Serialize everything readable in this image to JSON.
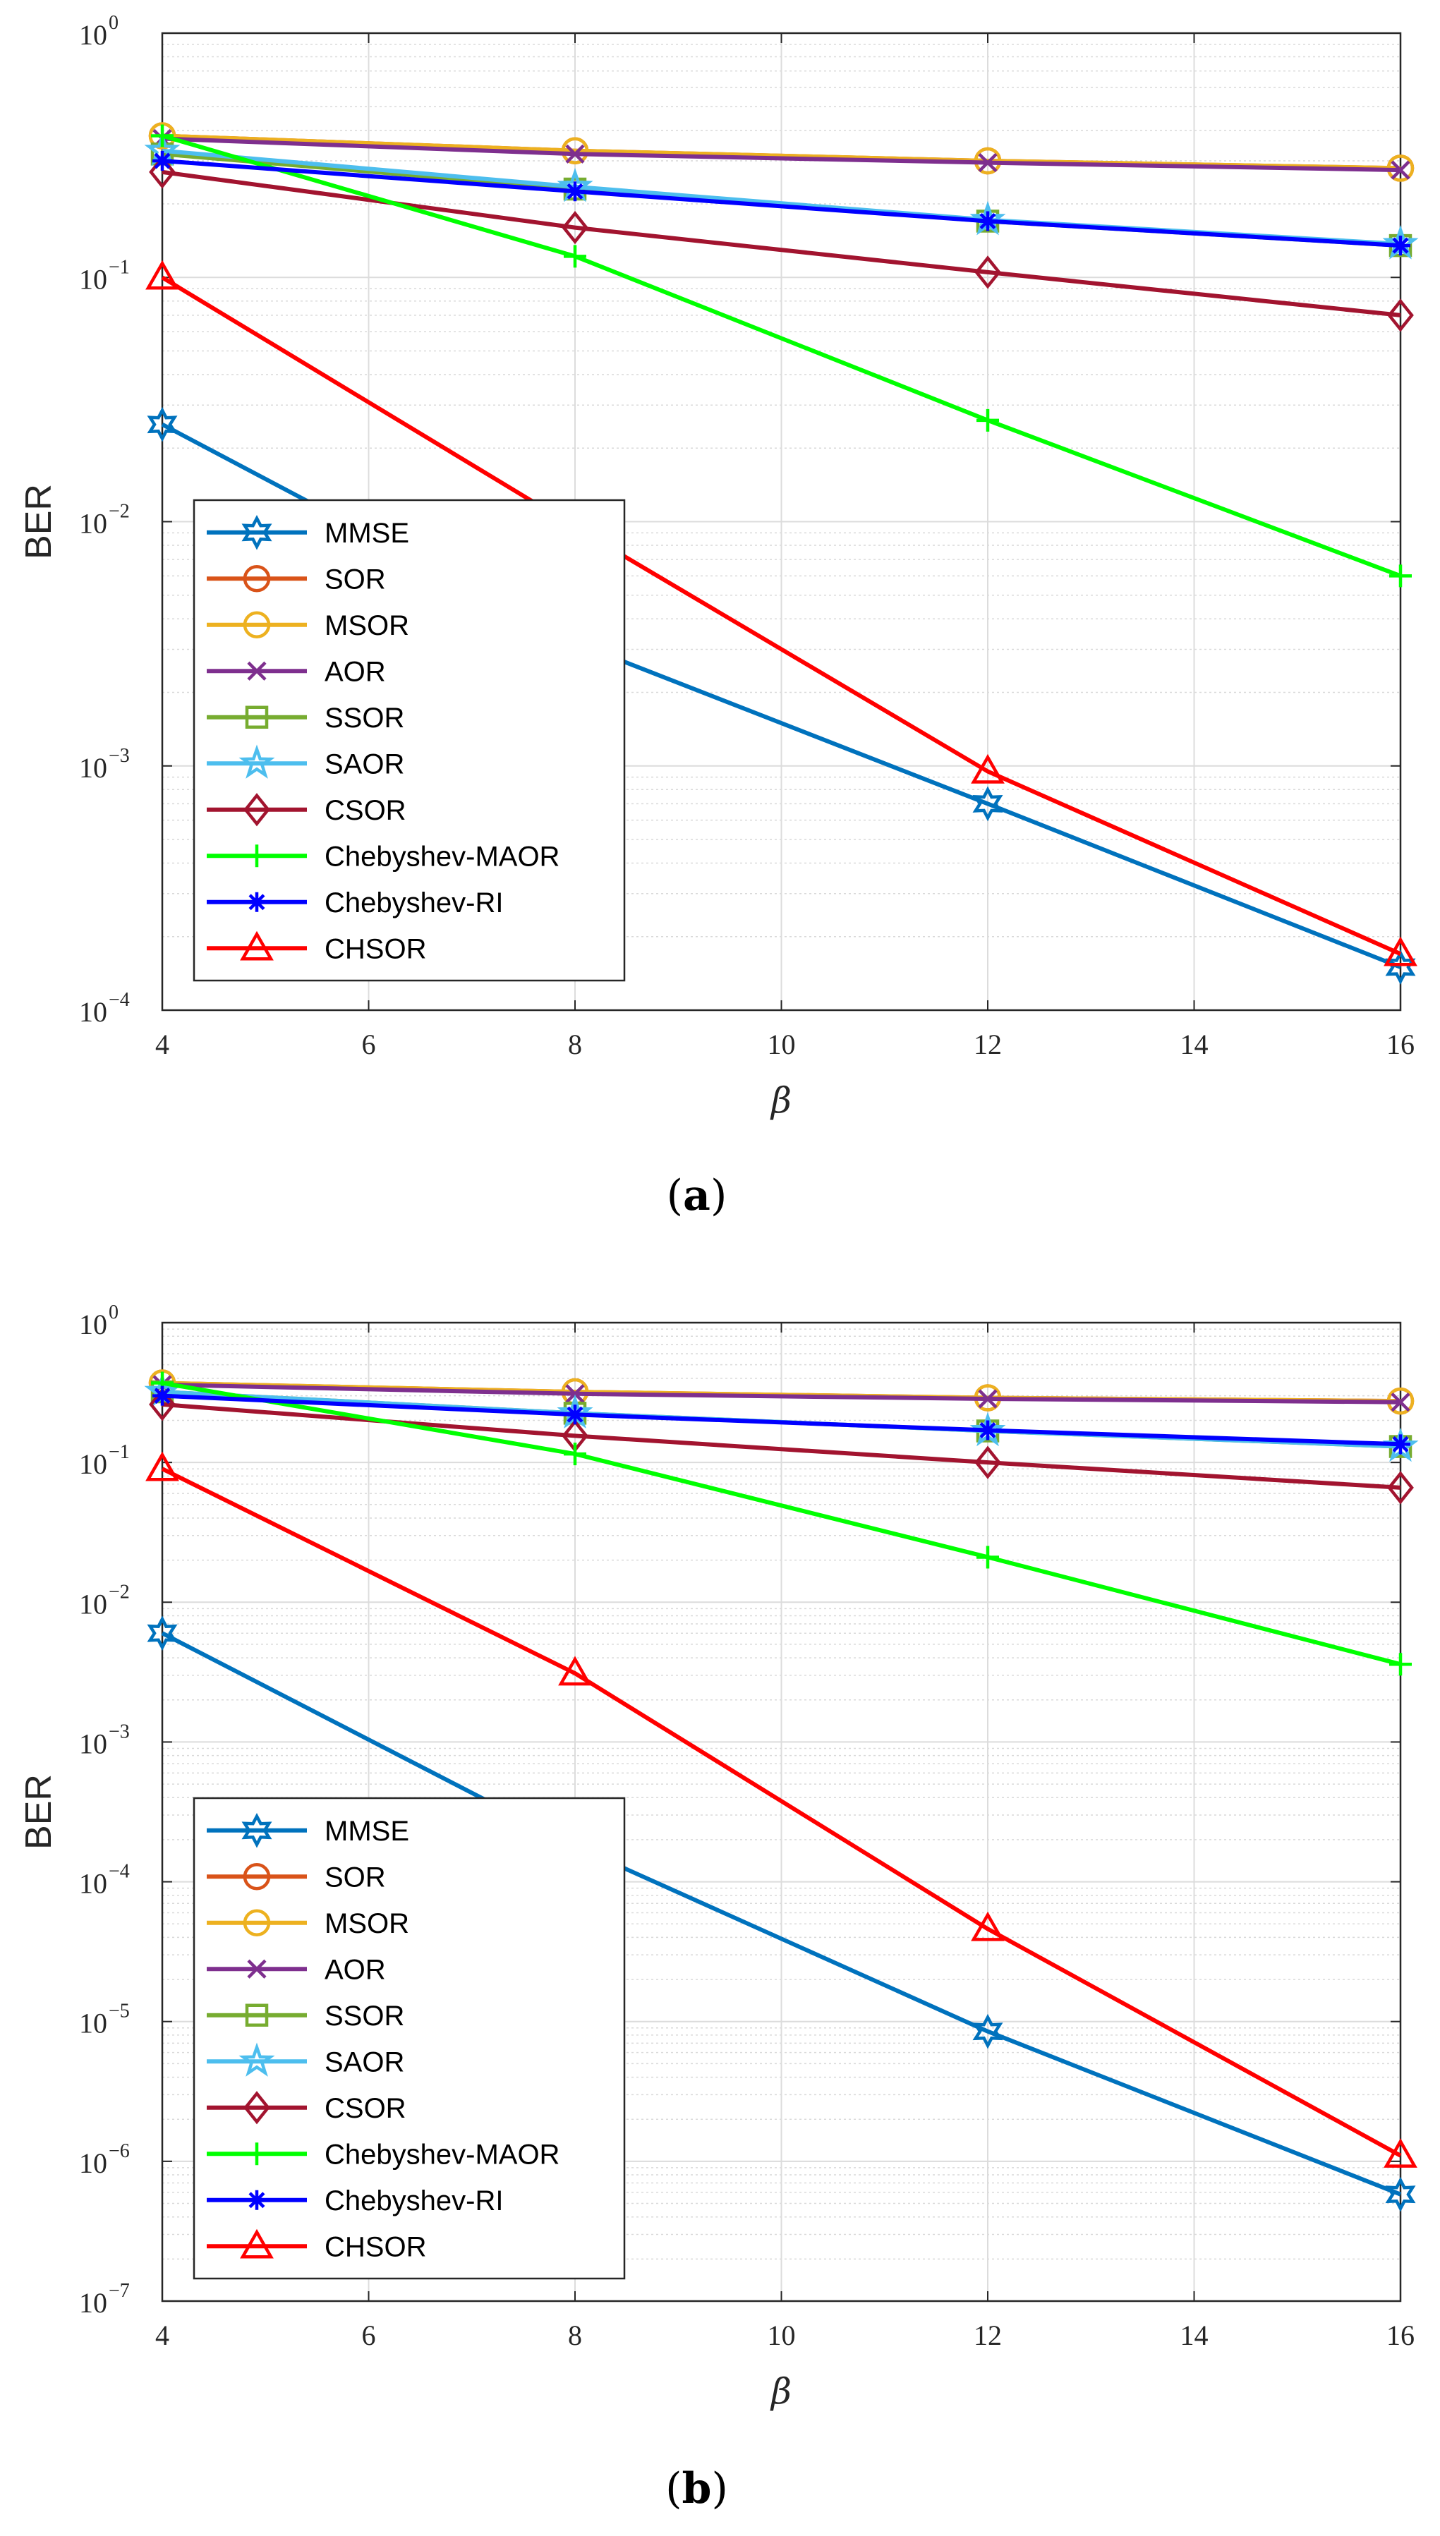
{
  "chart_data": [
    {
      "type": "line",
      "caption": "(a)",
      "xlabel": "β",
      "ylabel": "BER",
      "xlim": [
        4,
        16
      ],
      "ylim": [
        0.0001,
        1
      ],
      "yscale": "log",
      "grid": true,
      "legend_position": "lower-left",
      "x": [
        4,
        8,
        12,
        16
      ],
      "series": [
        {
          "name": "MMSE",
          "color": "#0072BD",
          "marker": "hexagram",
          "values": [
            0.025,
            0.0032,
            0.0007,
            0.00015
          ]
        },
        {
          "name": "SOR",
          "color": "#D95319",
          "marker": "circle",
          "values": [
            0.38,
            0.33,
            0.3,
            0.28
          ]
        },
        {
          "name": "MSOR",
          "color": "#EDB120",
          "marker": "circle",
          "values": [
            0.38,
            0.33,
            0.3,
            0.28
          ]
        },
        {
          "name": "AOR",
          "color": "#7E2F8E",
          "marker": "x",
          "values": [
            0.37,
            0.32,
            0.295,
            0.275
          ]
        },
        {
          "name": "SSOR",
          "color": "#77AC30",
          "marker": "square",
          "values": [
            0.32,
            0.23,
            0.17,
            0.135
          ]
        },
        {
          "name": "SAOR",
          "color": "#4DBEEE",
          "marker": "pentagram",
          "values": [
            0.33,
            0.235,
            0.172,
            0.137
          ]
        },
        {
          "name": "CSOR",
          "color": "#A2142F",
          "marker": "diamond",
          "values": [
            0.27,
            0.16,
            0.105,
            0.07
          ]
        },
        {
          "name": "Chebyshev-MAOR",
          "color": "#00FF00",
          "marker": "plus",
          "values": [
            0.38,
            0.122,
            0.026,
            0.006
          ]
        },
        {
          "name": "Chebyshev-RI",
          "color": "#0000FF",
          "marker": "asterisk",
          "values": [
            0.3,
            0.225,
            0.17,
            0.135
          ]
        },
        {
          "name": "CHSOR",
          "color": "#FF0000",
          "marker": "triangle",
          "values": [
            0.1,
            0.0095,
            0.00095,
            0.00017
          ]
        }
      ]
    },
    {
      "type": "line",
      "caption": "(b)",
      "xlabel": "β",
      "ylabel": "BER",
      "xlim": [
        4,
        16
      ],
      "ylim": [
        1e-07,
        1
      ],
      "yscale": "log",
      "grid": true,
      "legend_position": "lower-left",
      "x": [
        4,
        8,
        12,
        16
      ],
      "series": [
        {
          "name": "MMSE",
          "color": "#0072BD",
          "marker": "hexagram",
          "values": [
            0.006,
            0.00018,
            8.5e-06,
            5.8e-07
          ]
        },
        {
          "name": "SOR",
          "color": "#D95319",
          "marker": "circle",
          "values": [
            0.37,
            0.32,
            0.29,
            0.275
          ]
        },
        {
          "name": "MSOR",
          "color": "#EDB120",
          "marker": "circle",
          "values": [
            0.37,
            0.32,
            0.29,
            0.275
          ]
        },
        {
          "name": "AOR",
          "color": "#7E2F8E",
          "marker": "x",
          "values": [
            0.36,
            0.31,
            0.285,
            0.27
          ]
        },
        {
          "name": "SSOR",
          "color": "#77AC30",
          "marker": "square",
          "values": [
            0.32,
            0.225,
            0.168,
            0.13
          ]
        },
        {
          "name": "SAOR",
          "color": "#4DBEEE",
          "marker": "pentagram",
          "values": [
            0.32,
            0.225,
            0.168,
            0.13
          ]
        },
        {
          "name": "CSOR",
          "color": "#A2142F",
          "marker": "diamond",
          "values": [
            0.26,
            0.155,
            0.1,
            0.066
          ]
        },
        {
          "name": "Chebyshev-MAOR",
          "color": "#00FF00",
          "marker": "plus",
          "values": [
            0.37,
            0.115,
            0.021,
            0.0036
          ]
        },
        {
          "name": "Chebyshev-RI",
          "color": "#0000FF",
          "marker": "asterisk",
          "values": [
            0.3,
            0.22,
            0.17,
            0.135
          ]
        },
        {
          "name": "CHSOR",
          "color": "#FF0000",
          "marker": "triangle",
          "values": [
            0.09,
            0.0031,
            4.6e-05,
            1.1e-06
          ]
        }
      ]
    }
  ]
}
